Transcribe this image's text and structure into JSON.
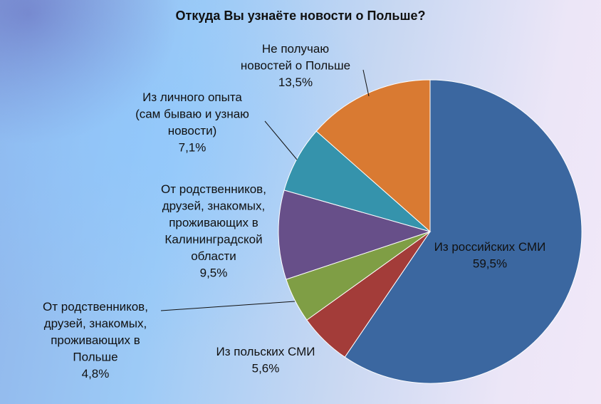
{
  "chart_data": {
    "type": "pie",
    "title": "Откуда Вы узнаёте новости о Польше?",
    "slices": [
      {
        "label": [
          "Из российских СМИ"
        ],
        "pct_text": "59,5%",
        "value": 59.5,
        "color": "#3b67a0"
      },
      {
        "label": [
          "Из польских СМИ"
        ],
        "pct_text": "5,6%",
        "value": 5.6,
        "color": "#a33c39"
      },
      {
        "label": [
          "От родственников,",
          "друзей, знакомых,",
          "проживающих в",
          "Польше"
        ],
        "pct_text": "4,8%",
        "value": 4.8,
        "color": "#7f9e45"
      },
      {
        "label": [
          "От родственников,",
          "друзей, знакомых,",
          "проживающих в",
          "Калининградской",
          "области"
        ],
        "pct_text": "9,5%",
        "value": 9.5,
        "color": "#674f89"
      },
      {
        "label": [
          "Из личного опыта",
          "(сам бываю и узнаю",
          "новости)"
        ],
        "pct_text": "7,1%",
        "value": 7.1,
        "color": "#3593ac"
      },
      {
        "label": [
          "Не получаю",
          "новостей о Польше"
        ],
        "pct_text": "13,5%",
        "value": 13.5,
        "color": "#d97a32"
      }
    ]
  }
}
